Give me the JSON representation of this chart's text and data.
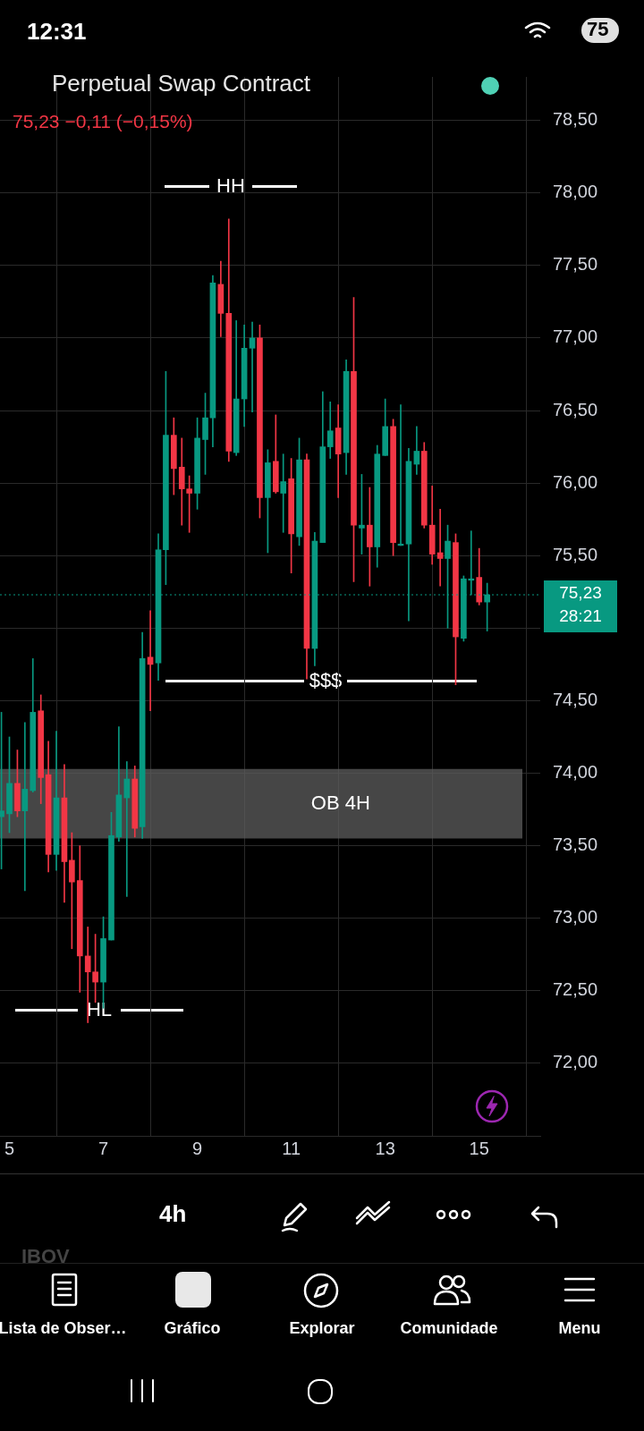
{
  "chart_data": {
    "type": "candlestick",
    "title": "Perpetual Swap Contract",
    "subtitle": "75,23  −0,11 (−0,15%)",
    "x": [
      4.83,
      5,
      5.17,
      5.33,
      5.5,
      5.67,
      5.83,
      6,
      6.17,
      6.33,
      6.5,
      6.67,
      6.83,
      7,
      7.17,
      7.33,
      7.5,
      7.67,
      7.83,
      8,
      8.17,
      8.33,
      8.5,
      8.67,
      8.83,
      9,
      9.17,
      9.33,
      9.5,
      9.67,
      9.83,
      10,
      10.17,
      10.33,
      10.5,
      10.67,
      10.83,
      11,
      11.17,
      11.33,
      11.5,
      11.67,
      11.83,
      12,
      12.17,
      12.33,
      12.5,
      12.67,
      12.83,
      13,
      13.17,
      13.33,
      13.5,
      13.67,
      13.83,
      14,
      14.17,
      14.33,
      14.5,
      14.67,
      14.83,
      15,
      15.17
    ],
    "ohlc": [
      [
        73.7,
        74.42,
        73.34,
        73.74
      ],
      [
        73.72,
        74.25,
        73.59,
        73.93
      ],
      [
        73.93,
        74.16,
        73.7,
        73.74
      ],
      [
        73.74,
        74.35,
        73.19,
        73.89
      ],
      [
        73.88,
        74.79,
        73.87,
        74.42
      ],
      [
        74.43,
        74.54,
        73.79,
        73.97
      ],
      [
        73.99,
        74.22,
        73.32,
        73.44
      ],
      [
        73.44,
        74.29,
        73.33,
        73.83
      ],
      [
        73.83,
        74.06,
        73.11,
        73.39
      ],
      [
        73.4,
        73.59,
        72.79,
        73.25
      ],
      [
        73.26,
        73.5,
        72.49,
        72.74
      ],
      [
        72.74,
        72.94,
        72.28,
        72.63
      ],
      [
        72.63,
        72.89,
        72.42,
        72.56
      ],
      [
        72.56,
        73.01,
        72.38,
        72.86
      ],
      [
        72.85,
        73.73,
        72.85,
        73.57
      ],
      [
        73.56,
        74.32,
        73.53,
        73.85
      ],
      [
        73.83,
        74.08,
        73.15,
        73.96
      ],
      [
        73.96,
        74.05,
        73.56,
        73.62
      ],
      [
        73.63,
        74.97,
        73.55,
        74.79
      ],
      [
        74.8,
        75.12,
        74.43,
        74.75
      ],
      [
        74.76,
        75.65,
        74.64,
        75.54
      ],
      [
        75.54,
        76.77,
        75.3,
        76.33
      ],
      [
        76.33,
        76.45,
        75.92,
        76.1
      ],
      [
        76.11,
        76.31,
        75.71,
        75.96
      ],
      [
        75.96,
        76.05,
        75.66,
        75.93
      ],
      [
        75.93,
        76.45,
        75.82,
        76.31
      ],
      [
        76.3,
        76.62,
        76.06,
        76.45
      ],
      [
        76.45,
        77.43,
        76.25,
        77.38
      ],
      [
        77.37,
        77.53,
        77.01,
        77.17
      ],
      [
        77.17,
        77.82,
        76.15,
        76.22
      ],
      [
        76.21,
        77.12,
        76.19,
        76.58
      ],
      [
        76.58,
        77.09,
        76.39,
        76.93
      ],
      [
        76.93,
        77.11,
        76.49,
        77.0
      ],
      [
        77.0,
        77.09,
        75.76,
        75.9
      ],
      [
        75.9,
        76.23,
        75.52,
        76.14
      ],
      [
        76.15,
        76.47,
        75.93,
        75.94
      ],
      [
        75.93,
        76.2,
        75.66,
        76.01
      ],
      [
        76.03,
        76.17,
        75.38,
        75.65
      ],
      [
        75.63,
        76.31,
        75.57,
        76.16
      ],
      [
        76.16,
        76.2,
        74.65,
        74.86
      ],
      [
        74.86,
        75.66,
        74.74,
        75.6
      ],
      [
        75.59,
        76.63,
        75.59,
        76.25
      ],
      [
        76.25,
        76.56,
        76.17,
        76.36
      ],
      [
        76.38,
        76.54,
        75.9,
        76.2
      ],
      [
        76.21,
        76.85,
        76.06,
        76.77
      ],
      [
        76.77,
        77.28,
        75.32,
        75.71
      ],
      [
        75.69,
        76.06,
        75.51,
        75.71
      ],
      [
        75.71,
        75.97,
        75.29,
        75.56
      ],
      [
        75.56,
        76.26,
        75.42,
        76.2
      ],
      [
        76.19,
        76.58,
        76.19,
        76.39
      ],
      [
        76.39,
        76.44,
        75.5,
        75.59
      ],
      [
        75.57,
        76.54,
        75.57,
        75.58
      ],
      [
        75.58,
        76.24,
        75.05,
        76.15
      ],
      [
        76.13,
        76.39,
        76.06,
        76.22
      ],
      [
        76.22,
        76.28,
        75.69,
        75.71
      ],
      [
        75.71,
        75.98,
        75.44,
        75.51
      ],
      [
        75.52,
        75.82,
        75.29,
        75.48
      ],
      [
        75.48,
        75.71,
        75.0,
        75.6
      ],
      [
        75.59,
        75.65,
        74.61,
        74.94
      ],
      [
        74.93,
        75.36,
        74.91,
        75.34
      ],
      [
        75.33,
        75.67,
        75.23,
        75.34
      ],
      [
        75.35,
        75.55,
        75.16,
        75.18
      ],
      [
        75.18,
        75.31,
        74.98,
        75.23
      ]
    ],
    "colors": [
      "#089981",
      "#089981",
      "#f23645",
      "#089981",
      "#089981",
      "#f23645",
      "#f23645",
      "#089981",
      "#f23645",
      "#f23645",
      "#f23645",
      "#f23645",
      "#f23645",
      "#089981",
      "#089981",
      "#089981",
      "#089981",
      "#f23645",
      "#089981",
      "#f23645",
      "#089981",
      "#089981",
      "#f23645",
      "#f23645",
      "#f23645",
      "#089981",
      "#089981",
      "#089981",
      "#f23645",
      "#f23645",
      "#089981",
      "#089981",
      "#089981",
      "#f23645",
      "#089981",
      "#f23645",
      "#089981",
      "#f23645",
      "#089981",
      "#f23645",
      "#089981",
      "#089981",
      "#089981",
      "#f23645",
      "#089981",
      "#f23645",
      "#089981",
      "#f23645",
      "#089981",
      "#089981",
      "#f23645",
      "#089981",
      "#089981",
      "#089981",
      "#f23645",
      "#f23645",
      "#f23645",
      "#089981",
      "#f23645",
      "#089981",
      "#089981",
      "#f23645",
      "#089981"
    ],
    "xlim": [
      4.8,
      16.3
    ],
    "xticks": [
      5,
      7,
      9,
      11,
      13,
      15
    ],
    "ylim": [
      71.5,
      78.8
    ],
    "yticks": [
      {
        "value": 72,
        "label": "72,00"
      },
      {
        "value": 72.5,
        "label": "72,50"
      },
      {
        "value": 73,
        "label": "73,00"
      },
      {
        "value": 73.5,
        "label": "73,50"
      },
      {
        "value": 74,
        "label": "74,00"
      },
      {
        "value": 74.5,
        "label": "74,50"
      },
      {
        "value": 75,
        "label": null
      },
      {
        "value": 75.5,
        "label": "75,50"
      },
      {
        "value": 76,
        "label": "76,00"
      },
      {
        "value": 76.5,
        "label": "76,50"
      },
      {
        "value": 77,
        "label": "77,00"
      },
      {
        "value": 77.5,
        "label": "77,50"
      },
      {
        "value": 78,
        "label": "78,00"
      },
      {
        "value": 78.5,
        "label": "78,50"
      }
    ],
    "grid": true,
    "ref_lines": [
      {
        "axis": "y",
        "value": 75.23,
        "label": "75,23",
        "color": "#089981",
        "line_style": "dotted"
      }
    ],
    "bands": [
      {
        "axis": "y",
        "from": 73.55,
        "to": 74.03,
        "label": "OB 4H",
        "color": "#5d5d5d"
      }
    ],
    "annotations": [
      "HH",
      "$$$",
      "HL",
      "28:21",
      "12:31",
      "75",
      "4h",
      "IBOV",
      "Lista de Obser…",
      "Gráfico",
      "Explorar",
      "Comunidade",
      "Menu"
    ]
  }
}
